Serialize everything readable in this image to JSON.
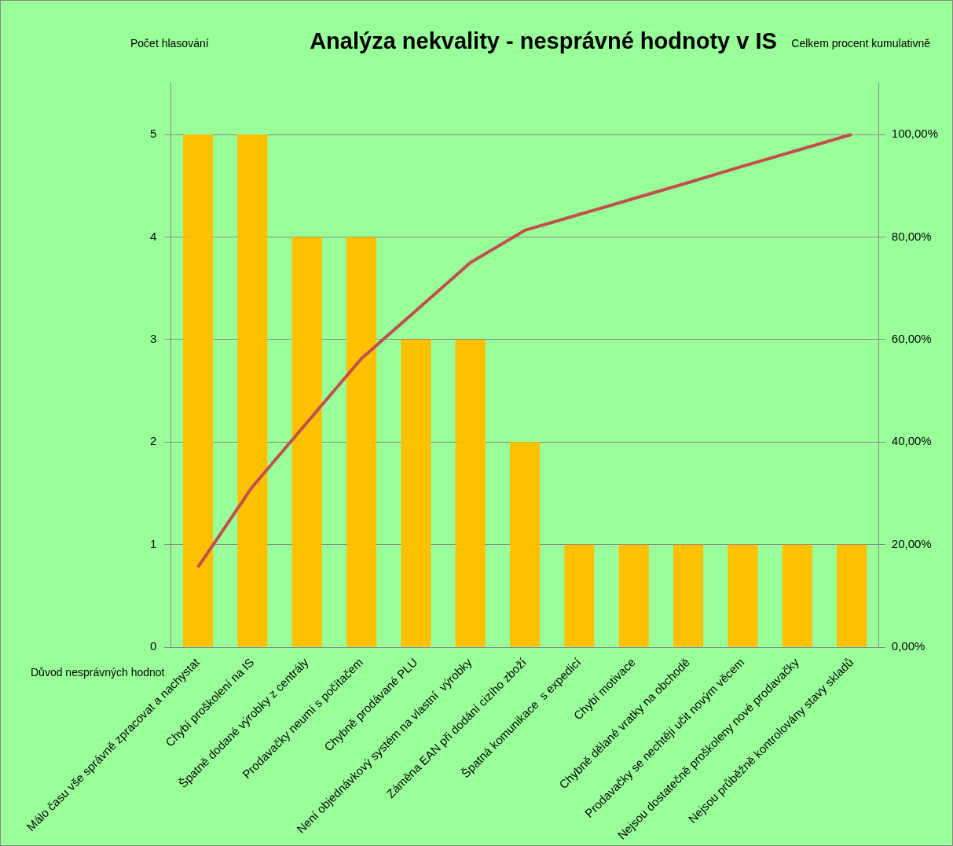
{
  "chart_data": {
    "type": "bar",
    "title": "Analýza nekvality - nesprávné hodnoty v IS",
    "xlabel": "Důvod nesprávných hodnot",
    "ylabel": "Počet hlasování",
    "y2label": "Celkem procent kumulativně",
    "categories": [
      "Málo času vše správně zpracovat a nachystat",
      "Chybí proškolení na IS",
      "Špatně dodané výrobky z centrály",
      "Prodavačky neumí s počítačem",
      "Chybně prodávané PLU",
      "Není objednávkový systém na vlastní  výrobky",
      "Záměna EAN při dodání cizího zboží",
      "Špatná komunikace  s expedicí",
      "Chybí motivace",
      "Chybně dělané vratky na obchodě",
      "Prodavačky se nechtějí učit novým věcem",
      "Nejsou dostatečně proškoleny nové prodavačky",
      "Nejsou průběžně kontrolovány stavy skladů"
    ],
    "series": [
      {
        "color": "#ffc000",
        "values": [
          5,
          5,
          4,
          4,
          3,
          3,
          2,
          1,
          1,
          1,
          1,
          1,
          1
        ]
      },
      {
        "type": "line",
        "axis": "y2",
        "color": "#c0504d",
        "values": [
          15.6,
          31.3,
          43.8,
          56.3,
          65.6,
          75,
          81.3,
          84.4,
          87.5,
          90.6,
          93.8,
          96.9,
          100
        ]
      }
    ],
    "ylim": [
      0,
      5.5
    ],
    "yticks": [
      0,
      1,
      2,
      3,
      4,
      5
    ],
    "y2lim": [
      0,
      110
    ],
    "y2ticks": [
      {
        "value": 0,
        "label": "0,00%"
      },
      {
        "value": 20,
        "label": "20,00%"
      },
      {
        "value": 40,
        "label": "40,00%"
      },
      {
        "value": 60,
        "label": "60,00%"
      },
      {
        "value": 80,
        "label": "80,00%"
      },
      {
        "value": 100,
        "label": "100,00%"
      }
    ],
    "grid": "y",
    "legend": false,
    "marker": "none",
    "line_style": "solid"
  }
}
